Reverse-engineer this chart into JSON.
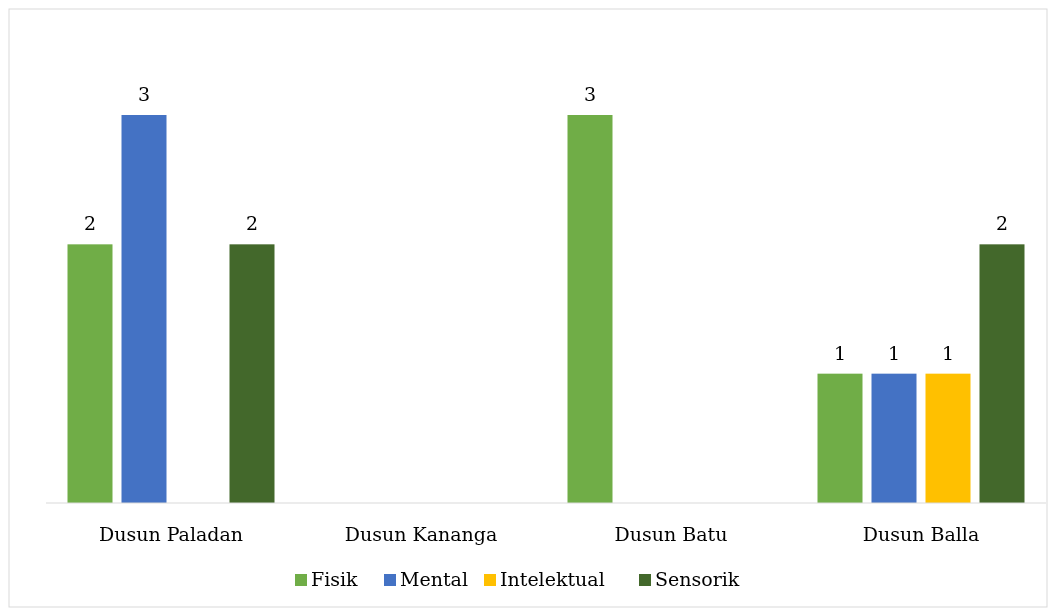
{
  "chart_data": {
    "type": "bar",
    "categories": [
      "Dusun Paladan",
      "Dusun Kananga",
      "Dusun Batu",
      "Dusun Balla"
    ],
    "series": [
      {
        "name": "Fisik",
        "color": "#70ad47",
        "values": [
          2,
          null,
          3,
          1
        ]
      },
      {
        "name": "Mental",
        "color": "#4472c4",
        "values": [
          3,
          null,
          null,
          1
        ]
      },
      {
        "name": "Intelektual",
        "color": "#ffc000",
        "values": [
          null,
          null,
          null,
          1
        ]
      },
      {
        "name": "Sensorik",
        "color": "#43682b",
        "values": [
          2,
          null,
          null,
          2
        ]
      }
    ],
    "data_labels": true,
    "legend": "bottom",
    "grid": false
  }
}
